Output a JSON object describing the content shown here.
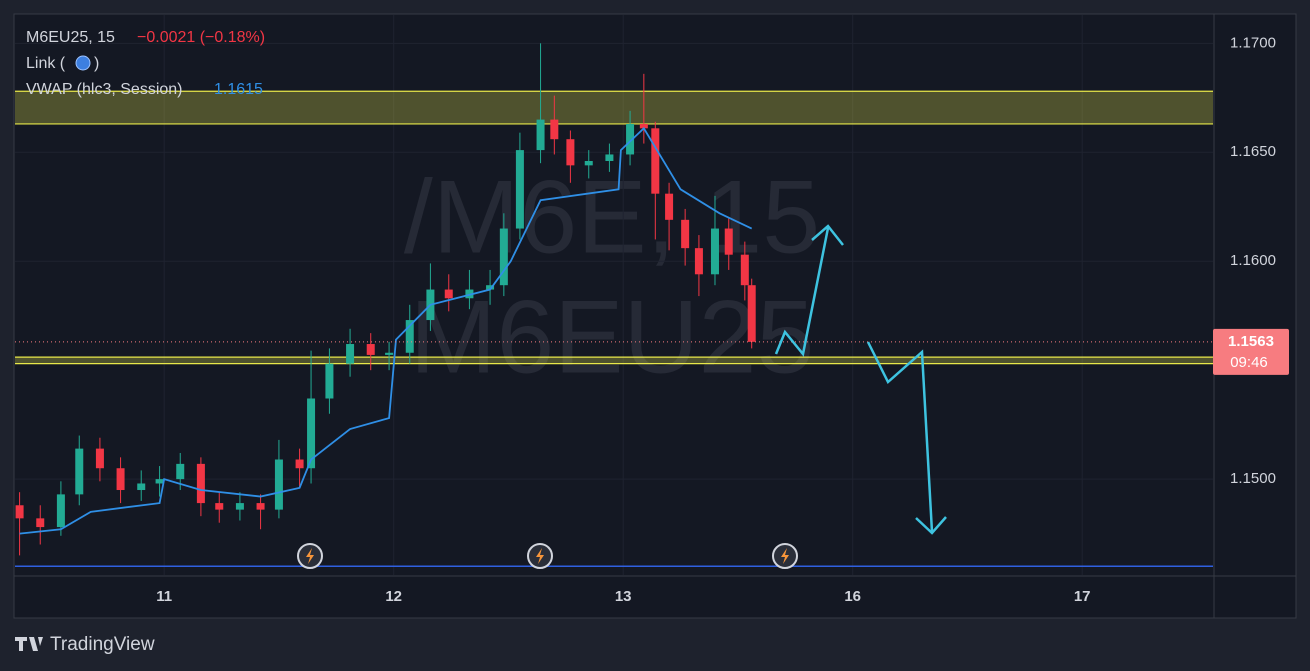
{
  "chart_data": {
    "type": "candlestick",
    "title": "M6EU25, 15",
    "change": "−0.0021 (−0.18%)",
    "link_open": "Link (",
    "link_close": ")",
    "watermark": [
      "/M6E, 15",
      "M6EU25"
    ],
    "brand": "TradingView",
    "up_color": "#22ab94",
    "down_color": "#f23645",
    "grid": true,
    "xlim": [
      0.35,
      5.57
    ],
    "ylim": [
      1.1456,
      1.1713
    ],
    "xticks": [
      {
        "value": 1,
        "label": "11"
      },
      {
        "value": 2,
        "label": "12"
      },
      {
        "value": 3,
        "label": "13"
      },
      {
        "value": 4,
        "label": "16"
      },
      {
        "value": 5,
        "label": "17"
      }
    ],
    "yticks": [
      {
        "value": 1.15,
        "label": "1.1500"
      },
      {
        "value": 1.16,
        "label": "1.1600"
      },
      {
        "value": 1.165,
        "label": "1.1650"
      },
      {
        "value": 1.17,
        "label": "1.1700"
      }
    ],
    "x": [
      0.37,
      0.46,
      0.55,
      0.63,
      0.72,
      0.81,
      0.9,
      0.98,
      1.07,
      1.16,
      1.24,
      1.33,
      1.42,
      1.5,
      1.59,
      1.64,
      1.72,
      1.81,
      1.9,
      1.98,
      2.07,
      2.16,
      2.24,
      2.33,
      2.42,
      2.48,
      2.55,
      2.64,
      2.7,
      2.77,
      2.85,
      2.94,
      3.03,
      3.09,
      3.14,
      3.2,
      3.27,
      3.33,
      3.4,
      3.46,
      3.53,
      3.56
    ],
    "open": [
      1.1488,
      1.1482,
      1.1478,
      1.1493,
      1.1514,
      1.1505,
      1.1495,
      1.1498,
      1.15,
      1.1507,
      1.1489,
      1.1486,
      1.1489,
      1.1486,
      1.1509,
      1.1505,
      1.1537,
      1.1553,
      1.1562,
      1.1557,
      1.1558,
      1.1573,
      1.1587,
      1.1583,
      1.1587,
      1.1589,
      1.1615,
      1.1651,
      1.1665,
      1.1656,
      1.1644,
      1.1646,
      1.1649,
      1.1663,
      1.1661,
      1.1631,
      1.1619,
      1.1606,
      1.1594,
      1.1615,
      1.1603,
      1.1589
    ],
    "high": [
      1.1494,
      1.1488,
      1.1499,
      1.152,
      1.1519,
      1.151,
      1.1504,
      1.1506,
      1.1512,
      1.151,
      1.1494,
      1.1494,
      1.1493,
      1.1518,
      1.1514,
      1.1559,
      1.156,
      1.1569,
      1.1567,
      1.1563,
      1.158,
      1.1599,
      1.1594,
      1.1596,
      1.1596,
      1.1622,
      1.1659,
      1.17,
      1.1676,
      1.166,
      1.1651,
      1.1654,
      1.1669,
      1.1686,
      1.1664,
      1.1636,
      1.1624,
      1.1612,
      1.163,
      1.162,
      1.1609,
      1.1592
    ],
    "low": [
      1.1465,
      1.147,
      1.1474,
      1.1488,
      1.1499,
      1.1489,
      1.149,
      1.1492,
      1.1495,
      1.1483,
      1.148,
      1.1481,
      1.1477,
      1.1482,
      1.1496,
      1.1498,
      1.153,
      1.1547,
      1.155,
      1.155,
      1.1553,
      1.1568,
      1.1577,
      1.1578,
      1.158,
      1.1584,
      1.161,
      1.1645,
      1.1649,
      1.1636,
      1.1638,
      1.1641,
      1.1644,
      1.1654,
      1.161,
      1.1605,
      1.1598,
      1.1584,
      1.1589,
      1.1596,
      1.1582,
      1.156
    ],
    "close": [
      1.1482,
      1.1478,
      1.1493,
      1.1514,
      1.1505,
      1.1495,
      1.1498,
      1.15,
      1.1507,
      1.1489,
      1.1486,
      1.1489,
      1.1486,
      1.1509,
      1.1505,
      1.1537,
      1.1553,
      1.1562,
      1.1557,
      1.1558,
      1.1573,
      1.1587,
      1.1583,
      1.1587,
      1.1589,
      1.1615,
      1.1651,
      1.1665,
      1.1656,
      1.1644,
      1.1646,
      1.1649,
      1.1663,
      1.1661,
      1.1631,
      1.1619,
      1.1606,
      1.1594,
      1.1615,
      1.1603,
      1.1589,
      1.1563
    ],
    "vwap": {
      "name": "VWAP (hlc3, Session)",
      "color": "#2f8fe6",
      "last_value": 1.1615,
      "x": [
        0.37,
        0.55,
        0.68,
        0.98,
        1.0,
        1.16,
        1.42,
        1.59,
        1.64,
        1.81,
        1.98,
        2.01,
        2.16,
        2.42,
        2.51,
        2.64,
        2.98,
        2.99,
        3.09,
        3.25,
        3.42,
        3.56
      ],
      "values": [
        1.1475,
        1.1477,
        1.1485,
        1.1489,
        1.15,
        1.1495,
        1.1492,
        1.1496,
        1.1509,
        1.1523,
        1.1528,
        1.1564,
        1.158,
        1.1587,
        1.16,
        1.1628,
        1.1633,
        1.1651,
        1.1661,
        1.1633,
        1.1622,
        1.1615
      ]
    },
    "last_price": 1.1563,
    "countdown": "09:46",
    "zones": [
      {
        "from": 1.1663,
        "to": 1.1678,
        "color": "#e8e84a"
      },
      {
        "from": 1.1553,
        "to": 1.1556,
        "color": "#e8e84a"
      }
    ],
    "hline": {
      "value": 1.146,
      "color": "#2f5fe0"
    }
  }
}
